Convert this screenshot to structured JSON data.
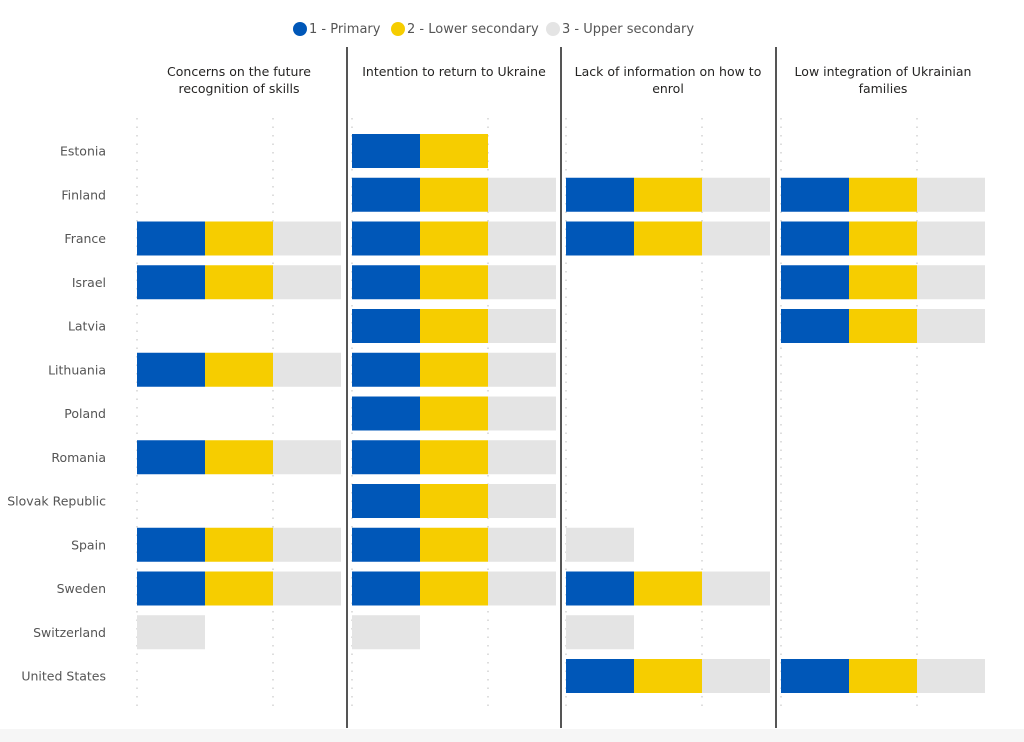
{
  "chart_data": {
    "type": "bar",
    "orientation": "horizontal",
    "stacked": true,
    "small_multiples": true,
    "legend": {
      "placement": "top-center",
      "entries": [
        {
          "key": "primary",
          "label": "1 - Primary",
          "color": "#0057b8"
        },
        {
          "key": "lower",
          "label": "2 - Lower secondary",
          "color": "#f6cd00"
        },
        {
          "key": "upper",
          "label": "3 - Upper secondary",
          "color": "#e4e4e4"
        }
      ]
    },
    "categories": [
      "Estonia",
      "Finland",
      "France",
      "Israel",
      "Latvia",
      "Lithuania",
      "Poland",
      "Romania",
      "Slovak Republic",
      "Spain",
      "Sweden",
      "Switzerland",
      "United States"
    ],
    "xlim": [
      0,
      3
    ],
    "grid_ticks": [
      0,
      2
    ],
    "grid": "dotted-vertical",
    "panels": [
      {
        "title": "Concerns on the future recognition of skills",
        "title_lines": [
          "Concerns on the future",
          "recognition of skills"
        ],
        "rows": {
          "France": [
            "primary",
            "lower",
            "upper"
          ],
          "Israel": [
            "primary",
            "lower",
            "upper"
          ],
          "Lithuania": [
            "primary",
            "lower",
            "upper"
          ],
          "Romania": [
            "primary",
            "lower",
            "upper"
          ],
          "Spain": [
            "primary",
            "lower",
            "upper"
          ],
          "Sweden": [
            "primary",
            "lower",
            "upper"
          ],
          "Switzerland": [
            "upper"
          ]
        }
      },
      {
        "title": "Intention to return to Ukraine",
        "title_lines": [
          "Intention to return to Ukraine"
        ],
        "rows": {
          "Estonia": [
            "primary",
            "lower"
          ],
          "Finland": [
            "primary",
            "lower",
            "upper"
          ],
          "France": [
            "primary",
            "lower",
            "upper"
          ],
          "Israel": [
            "primary",
            "lower",
            "upper"
          ],
          "Latvia": [
            "primary",
            "lower",
            "upper"
          ],
          "Lithuania": [
            "primary",
            "lower",
            "upper"
          ],
          "Poland": [
            "primary",
            "lower",
            "upper"
          ],
          "Romania": [
            "primary",
            "lower",
            "upper"
          ],
          "Slovak Republic": [
            "primary",
            "lower",
            "upper"
          ],
          "Spain": [
            "primary",
            "lower",
            "upper"
          ],
          "Sweden": [
            "primary",
            "lower",
            "upper"
          ],
          "Switzerland": [
            "upper"
          ]
        }
      },
      {
        "title": "Lack of information on how to enrol",
        "title_lines": [
          "Lack of information on how to",
          "enrol"
        ],
        "rows": {
          "Finland": [
            "primary",
            "lower",
            "upper"
          ],
          "France": [
            "primary",
            "lower",
            "upper"
          ],
          "Spain": [
            "upper"
          ],
          "Sweden": [
            "primary",
            "lower",
            "upper"
          ],
          "Switzerland": [
            "upper"
          ],
          "United States": [
            "primary",
            "lower",
            "upper"
          ]
        }
      },
      {
        "title": "Low integration of Ukrainian families",
        "title_lines": [
          "Low integration of Ukrainian",
          "families"
        ],
        "rows": {
          "Finland": [
            "primary",
            "lower",
            "upper"
          ],
          "France": [
            "primary",
            "lower",
            "upper"
          ],
          "Israel": [
            "primary",
            "lower",
            "upper"
          ],
          "Latvia": [
            "primary",
            "lower",
            "upper"
          ],
          "United States": [
            "primary",
            "lower",
            "upper"
          ]
        }
      }
    ]
  }
}
